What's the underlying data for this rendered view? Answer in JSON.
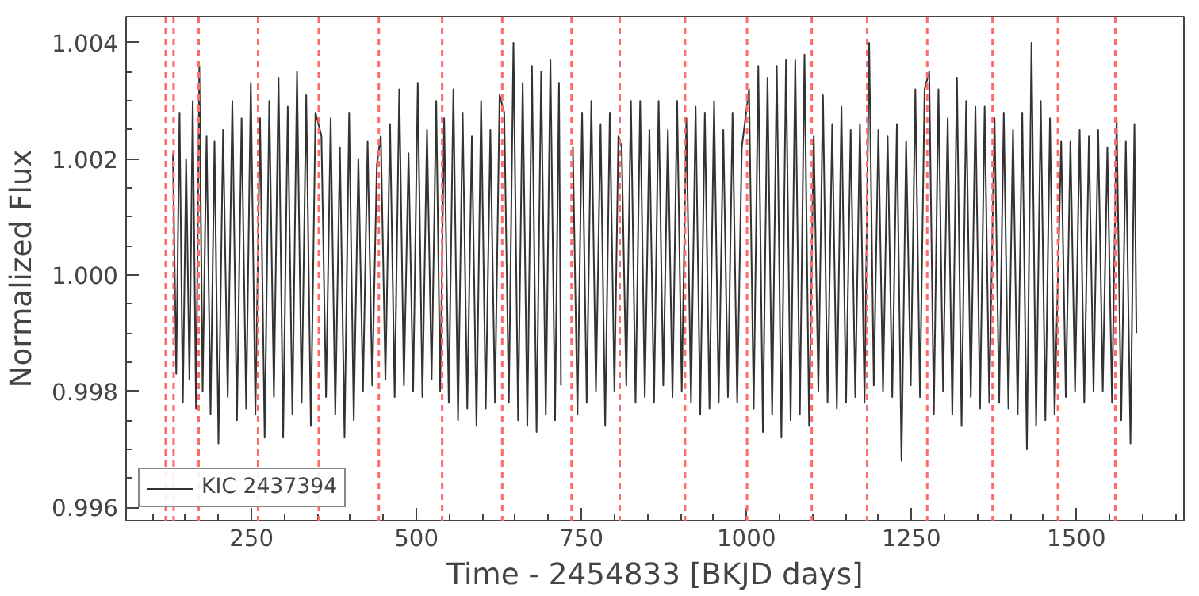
{
  "chart_data": {
    "type": "line",
    "xlabel": "Time - 2454833 [BKJD days]",
    "ylabel": "Normalized Flux",
    "xlim": [
      60,
      1663
    ],
    "ylim": [
      0.99577,
      1.00445
    ],
    "xticks": [
      250,
      500,
      750,
      1000,
      1250,
      1500
    ],
    "yticks": [
      {
        "value": 0.996,
        "label": "0.996"
      },
      {
        "value": 0.998,
        "label": "0.998"
      },
      {
        "value": 1.0,
        "label": "1.000"
      },
      {
        "value": 1.002,
        "label": "1.002"
      },
      {
        "value": 1.004,
        "label": "1.004"
      }
    ],
    "grid": false,
    "legend": "bottom left",
    "line_style": "solid",
    "marker": "none",
    "series": [
      {
        "name": "KIC 2437394",
        "color": "#333333",
        "x": [
          131,
          136,
          141,
          146,
          151,
          156,
          161,
          166,
          171,
          176,
          182,
          188,
          194,
          200,
          207,
          214,
          221,
          228,
          235,
          242,
          249,
          256,
          263,
          270,
          277,
          284,
          291,
          298,
          305,
          312,
          319,
          326,
          333,
          340,
          347,
          356,
          363,
          370,
          377,
          384,
          391,
          398,
          405,
          412,
          419,
          426,
          433,
          440,
          446,
          453,
          460,
          467,
          474,
          481,
          488,
          495,
          502,
          509,
          516,
          523,
          530,
          536,
          542,
          549,
          556,
          563,
          570,
          577,
          584,
          591,
          598,
          605,
          612,
          619,
          626,
          633,
          640,
          647,
          654,
          661,
          668,
          675,
          682,
          689,
          696,
          703,
          710,
          716,
          719,
          722,
          737,
          744,
          751,
          758,
          765,
          772,
          779,
          786,
          793,
          800,
          806,
          811,
          818,
          825,
          832,
          839,
          846,
          853,
          860,
          867,
          874,
          881,
          888,
          895,
          902,
          909,
          916,
          923,
          930,
          937,
          944,
          951,
          958,
          965,
          972,
          979,
          986,
          993,
          1004,
          1011,
          1018,
          1025,
          1032,
          1039,
          1046,
          1053,
          1060,
          1067,
          1074,
          1081,
          1088,
          1095,
          1102,
          1109,
          1116,
          1123,
          1130,
          1137,
          1144,
          1151,
          1158,
          1165,
          1172,
          1179,
          1186,
          1193,
          1200,
          1207,
          1214,
          1221,
          1228,
          1235,
          1242,
          1249,
          1256,
          1263,
          1270,
          1277,
          1284,
          1291,
          1298,
          1305,
          1312,
          1319,
          1326,
          1333,
          1340,
          1347,
          1354,
          1361,
          1368,
          1376,
          1383,
          1390,
          1397,
          1404,
          1411,
          1418,
          1425,
          1432,
          1439,
          1446,
          1453,
          1460,
          1467,
          1477,
          1484,
          1491,
          1498,
          1505,
          1512,
          1519,
          1526,
          1533,
          1540,
          1547,
          1554,
          1561,
          1568,
          1575,
          1582,
          1588,
          1591
        ],
        "values": [
          1.0021,
          0.9983,
          1.0028,
          0.9978,
          1.002,
          0.9982,
          1.003,
          0.9977,
          1.0036,
          0.998,
          1.0024,
          0.9976,
          1.0023,
          0.9971,
          1.0025,
          0.9979,
          1.003,
          0.9975,
          1.0027,
          0.9977,
          1.0033,
          0.9976,
          1.0027,
          0.9972,
          1.003,
          0.9979,
          1.0034,
          0.9972,
          1.0029,
          0.9976,
          1.0035,
          0.9978,
          1.0031,
          0.9974,
          1.0028,
          1.0024,
          0.9979,
          1.0027,
          0.9976,
          1.0022,
          0.9972,
          1.0028,
          0.9975,
          1.002,
          0.998,
          1.0023,
          0.9981,
          1.0019,
          1.0024,
          0.9982,
          1.0026,
          0.9979,
          1.0032,
          0.9981,
          1.0021,
          0.998,
          1.0033,
          0.9979,
          1.0025,
          0.9982,
          1.003,
          0.998,
          1.0027,
          0.9978,
          1.0032,
          0.9975,
          1.0028,
          0.9977,
          1.0024,
          0.9974,
          1.003,
          0.9977,
          1.0025,
          0.9978,
          1.0031,
          1.0028,
          0.9978,
          1.004,
          0.9975,
          1.0033,
          0.9974,
          1.0036,
          0.9973,
          1.0035,
          0.9976,
          1.0037,
          0.9975,
          1.0033,
          0.9981,
          null,
          1.0022,
          0.9976,
          1.0028,
          0.9978,
          1.003,
          0.998,
          1.0026,
          0.9974,
          1.0028,
          0.998,
          1.0024,
          1.0022,
          0.9981,
          1.003,
          0.9978,
          1.003,
          0.9979,
          1.0025,
          0.9978,
          1.003,
          0.9981,
          1.0025,
          0.9979,
          1.003,
          0.998,
          1.0027,
          0.9978,
          1.0029,
          0.9976,
          1.0028,
          0.9977,
          1.003,
          0.9978,
          1.0025,
          0.9979,
          1.0028,
          0.9978,
          1.0022,
          1.0032,
          0.9977,
          1.0036,
          0.9973,
          1.0034,
          0.9976,
          1.0036,
          0.9972,
          1.0037,
          0.9975,
          1.0037,
          0.9976,
          1.0038,
          0.9974,
          1.0024,
          0.998,
          1.0031,
          0.9978,
          1.0026,
          0.9977,
          1.0029,
          0.9978,
          1.0025,
          0.9979,
          1.0026,
          0.9978,
          1.004,
          0.9981,
          1.0025,
          0.998,
          1.0024,
          0.9979,
          1.0026,
          0.9968,
          1.0023,
          0.9981,
          1.0032,
          0.9979,
          1.0032,
          1.0035,
          0.9976,
          1.0032,
          0.998,
          1.0027,
          0.9976,
          1.0034,
          0.9974,
          1.003,
          0.9979,
          1.0029,
          0.9977,
          1.0029,
          0.9978,
          1.0027,
          0.9978,
          1.0028,
          0.9977,
          1.0025,
          0.9976,
          1.0028,
          0.997,
          1.004,
          0.9974,
          1.003,
          0.9975,
          1.0027,
          0.9976,
          1.0023,
          0.9979,
          1.0023,
          0.998,
          1.0025,
          0.9978,
          1.0024,
          0.998,
          1.0025,
          0.998,
          1.0022,
          0.9978,
          1.0027,
          0.9975,
          1.0023,
          0.9971,
          1.0026,
          0.999
        ]
      }
    ],
    "ref_lines": [
      {
        "axis": "x",
        "value": 120,
        "color": "#ff6b6b",
        "line_style": "dashed"
      },
      {
        "axis": "x",
        "value": 132,
        "color": "#ff6b6b",
        "line_style": "dashed"
      },
      {
        "axis": "x",
        "value": 170,
        "color": "#ff6b6b",
        "line_style": "dashed"
      },
      {
        "axis": "x",
        "value": 260,
        "color": "#ff6b6b",
        "line_style": "dashed"
      },
      {
        "axis": "x",
        "value": 352,
        "color": "#ff6b6b",
        "line_style": "dashed"
      },
      {
        "axis": "x",
        "value": 443,
        "color": "#ff6b6b",
        "line_style": "dashed"
      },
      {
        "axis": "x",
        "value": 539,
        "color": "#ff6b6b",
        "line_style": "dashed"
      },
      {
        "axis": "x",
        "value": 630,
        "color": "#ff6b6b",
        "line_style": "dashed"
      },
      {
        "axis": "x",
        "value": 735,
        "color": "#ff6b6b",
        "line_style": "dashed"
      },
      {
        "axis": "x",
        "value": 808,
        "color": "#ff6b6b",
        "line_style": "dashed"
      },
      {
        "axis": "x",
        "value": 907,
        "color": "#ff6b6b",
        "line_style": "dashed"
      },
      {
        "axis": "x",
        "value": 1001,
        "color": "#ff6b6b",
        "line_style": "dashed"
      },
      {
        "axis": "x",
        "value": 1099,
        "color": "#ff6b6b",
        "line_style": "dashed"
      },
      {
        "axis": "x",
        "value": 1183,
        "color": "#ff6b6b",
        "line_style": "dashed"
      },
      {
        "axis": "x",
        "value": 1274,
        "color": "#ff6b6b",
        "line_style": "dashed"
      },
      {
        "axis": "x",
        "value": 1373,
        "color": "#ff6b6b",
        "line_style": "dashed"
      },
      {
        "axis": "x",
        "value": 1472,
        "color": "#ff6b6b",
        "line_style": "dashed"
      },
      {
        "axis": "x",
        "value": 1559,
        "color": "#ff6b6b",
        "line_style": "dashed"
      }
    ]
  }
}
